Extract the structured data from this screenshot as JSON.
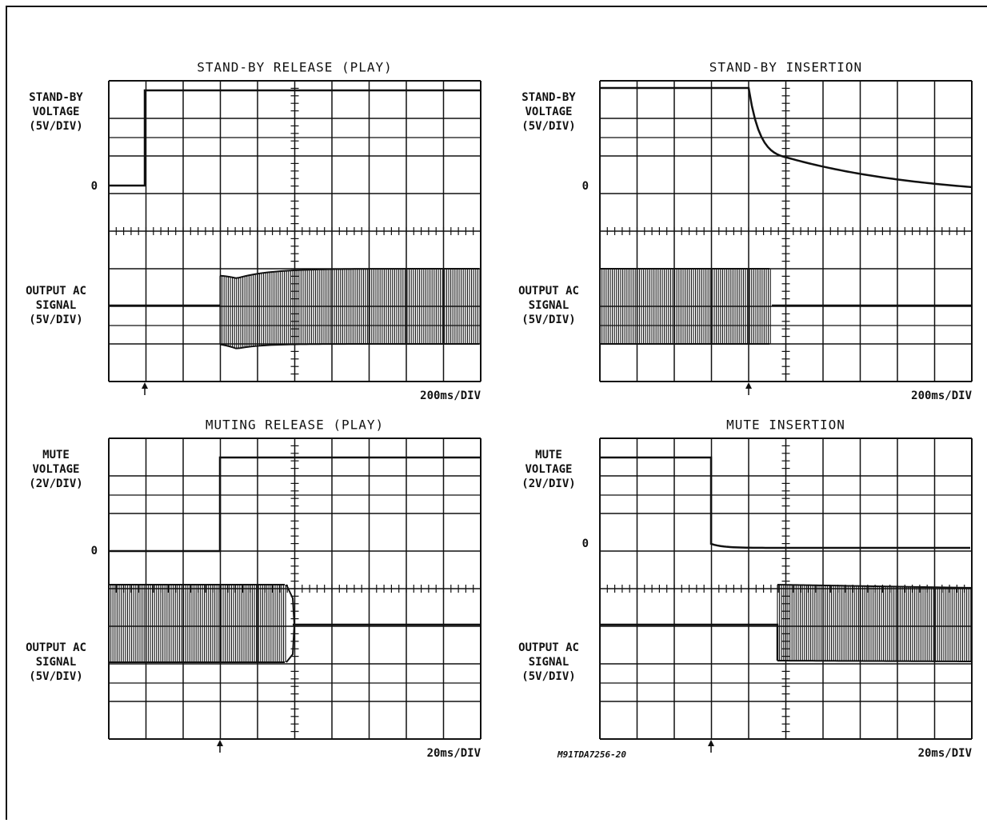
{
  "panels": [
    {
      "title": "STAND-BY RELEASE (PLAY)",
      "upper_label": [
        "STAND-BY",
        "VOLTAGE",
        "(5V/DIV)"
      ],
      "zero": "0",
      "lower_label": [
        "OUTPUT AC",
        "SIGNAL",
        "(5V/DIV)"
      ],
      "timebase": "200ms/DIV"
    },
    {
      "title": "STAND-BY INSERTION",
      "upper_label": [
        "STAND-BY",
        "VOLTAGE",
        "(5V/DIV)"
      ],
      "zero": "0",
      "lower_label": [
        "OUTPUT AC",
        "SIGNAL",
        "(5V/DIV)"
      ],
      "timebase": "200ms/DIV"
    },
    {
      "title": "MUTING RELEASE (PLAY)",
      "upper_label": [
        "MUTE",
        "VOLTAGE",
        "(2V/DIV)"
      ],
      "zero": "0",
      "lower_label": [
        "OUTPUT AC",
        "SIGNAL",
        "(5V/DIV)"
      ],
      "timebase": "20ms/DIV"
    },
    {
      "title": "MUTE INSERTION",
      "upper_label": [
        "MUTE",
        "VOLTAGE",
        "(2V/DIV)"
      ],
      "zero": "0",
      "lower_label": [
        "OUTPUT AC",
        "SIGNAL",
        "(5V/DIV)"
      ],
      "timebase": "20ms/DIV"
    }
  ],
  "figure_code": "M91TDA7256-20"
}
